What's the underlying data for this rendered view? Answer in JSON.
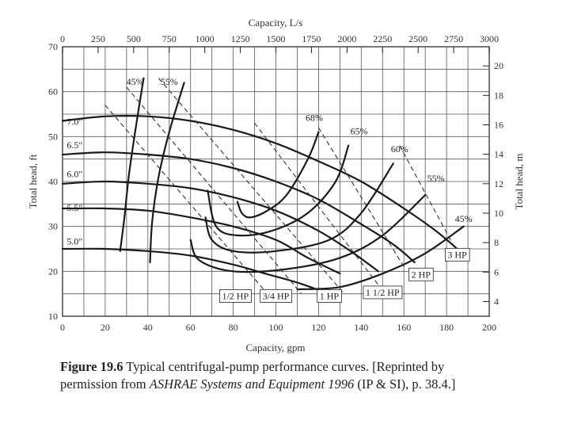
{
  "chart_data": {
    "type": "line",
    "title": "",
    "xlabel": "Capacity, gpm",
    "x2label": "Capacity, L/s",
    "ylabel": "Total head, ft",
    "y2label": "Total head, m",
    "xlim": [
      0,
      200
    ],
    "ylim": [
      10,
      70
    ],
    "x2lim": [
      0,
      3000
    ],
    "y2lim": [
      3,
      21.3
    ],
    "xticks": [
      0,
      20,
      40,
      60,
      80,
      100,
      120,
      140,
      160,
      180,
      200
    ],
    "yticks": [
      10,
      20,
      30,
      40,
      50,
      60,
      70
    ],
    "x2ticks": [
      0,
      250,
      500,
      750,
      1000,
      1250,
      1500,
      1750,
      2000,
      2250,
      2500,
      2750,
      3000
    ],
    "y2ticks": [
      4,
      6,
      8,
      10,
      12,
      14,
      16,
      18,
      20
    ],
    "grid": true,
    "series": [
      {
        "name": "7.0\"",
        "kind": "impeller",
        "label_at": [
          2,
          52.6
        ],
        "x": [
          0,
          20,
          40,
          60,
          80,
          100,
          120,
          140,
          160,
          175,
          185
        ],
        "y": [
          53.5,
          54.5,
          54.5,
          53.5,
          51.5,
          48.5,
          44.5,
          40,
          34,
          29,
          25
        ]
      },
      {
        "name": "6.5\"",
        "kind": "impeller",
        "label_at": [
          2,
          47.4
        ],
        "x": [
          0,
          20,
          40,
          60,
          80,
          100,
          120,
          140,
          155,
          165
        ],
        "y": [
          46,
          46.5,
          46,
          45,
          43,
          40,
          36,
          30.5,
          26,
          22
        ]
      },
      {
        "name": "6.0\"",
        "kind": "impeller",
        "label_at": [
          2,
          41
        ],
        "x": [
          0,
          20,
          40,
          60,
          80,
          100,
          120,
          135,
          148
        ],
        "y": [
          39.5,
          40,
          39.5,
          38.5,
          36.5,
          33.5,
          29,
          24.5,
          20
        ]
      },
      {
        "name": "5.5\"",
        "kind": "impeller",
        "label_at": [
          2,
          33.5
        ],
        "x": [
          0,
          20,
          40,
          60,
          80,
          100,
          115,
          130
        ],
        "y": [
          34,
          34,
          33.5,
          32,
          30,
          27,
          23,
          19.5
        ]
      },
      {
        "name": "5.0\"",
        "kind": "impeller",
        "label_at": [
          2,
          26
        ],
        "x": [
          0,
          20,
          40,
          60,
          80,
          95,
          110,
          122
        ],
        "y": [
          25,
          25,
          24.5,
          23.5,
          21.5,
          19.5,
          17.5,
          15.5
        ]
      },
      {
        "name": "45%",
        "kind": "efficiency",
        "label_at": [
          34,
          61.5
        ],
        "x": [
          27,
          29,
          31,
          34,
          38
        ],
        "y": [
          24.5,
          32,
          41,
          51,
          63
        ]
      },
      {
        "name": "55%",
        "kind": "efficiency",
        "label_at": [
          50,
          61.5
        ],
        "x": [
          41,
          42,
          45,
          50,
          57
        ],
        "y": [
          22,
          31,
          41,
          51,
          62
        ]
      },
      {
        "name": "68%",
        "kind": "efficiency",
        "label_at": [
          118,
          53.5
        ],
        "x": [
          82,
          84,
          88,
          96,
          105,
          115,
          120
        ],
        "y": [
          35.5,
          33,
          32,
          33.5,
          37,
          45,
          51
        ]
      },
      {
        "name": "65%",
        "kind": "efficiency",
        "label_at": [
          139,
          50.5
        ],
        "x": [
          68,
          72,
          82,
          98,
          115,
          128,
          134
        ],
        "y": [
          38,
          30,
          28,
          29,
          33,
          40,
          48
        ]
      },
      {
        "name": "60%",
        "kind": "efficiency",
        "label_at": [
          158,
          46.5
        ],
        "x": [
          67,
          70,
          80,
          100,
          125,
          140,
          155
        ],
        "y": [
          32,
          27,
          24.5,
          24.5,
          27,
          33,
          44
        ]
      },
      {
        "name": "55%",
        "kind": "efficiency",
        "label_at": [
          175,
          40
        ],
        "x": [
          60,
          64,
          80,
          105,
          130,
          150,
          170
        ],
        "y": [
          27,
          22.5,
          20,
          20.5,
          23,
          28,
          37
        ]
      },
      {
        "name": "45%",
        "kind": "efficiency",
        "label_at": [
          188,
          31
        ],
        "x": [
          110,
          130,
          150,
          170,
          188
        ],
        "y": [
          16,
          16.5,
          19.5,
          24,
          30
        ]
      },
      {
        "name": "1/2 HP",
        "kind": "power",
        "label_at": [
          81,
          13.8
        ],
        "x": [
          20,
          96
        ],
        "y": [
          57,
          15
        ]
      },
      {
        "name": "3/4 HP",
        "kind": "power",
        "label_at": [
          100,
          13.8
        ],
        "x": [
          30,
          112
        ],
        "y": [
          61,
          15
        ]
      },
      {
        "name": "1 HP",
        "kind": "power",
        "label_at": [
          125,
          13.8
        ],
        "x": [
          45,
          132
        ],
        "y": [
          63,
          15
        ]
      },
      {
        "name": "1 1/2 HP",
        "kind": "power",
        "label_at": [
          150,
          14.6
        ],
        "x": [
          90,
          148
        ],
        "y": [
          53,
          17
        ]
      },
      {
        "name": "2 HP",
        "kind": "power",
        "label_at": [
          168,
          18.6
        ],
        "x": [
          120,
          160
        ],
        "y": [
          52,
          21
        ]
      },
      {
        "name": "3 HP",
        "kind": "power",
        "label_at": [
          185,
          23
        ],
        "x": [
          158,
          183
        ],
        "y": [
          48,
          26
        ]
      }
    ]
  },
  "caption": {
    "figure": "Figure 19.6",
    "text1": "Typical centrifugal-pump performance curves. [Reprinted by permission from",
    "source": "ASHRAE Systems and Equipment 1996",
    "text2": "(IP & SI), p. 38.4.]"
  }
}
